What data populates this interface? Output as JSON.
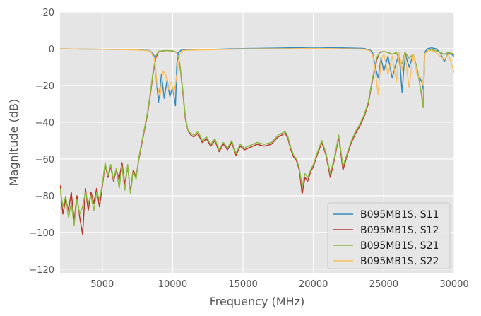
{
  "chart_data": {
    "type": "line",
    "xlabel": "Frequency (MHz)",
    "ylabel": "Magnitude (dB)",
    "xlim": [
      2000,
      30000
    ],
    "ylim": [
      -122,
      20
    ],
    "xticks": [
      5000,
      10000,
      15000,
      20000,
      25000,
      30000
    ],
    "xtick_labels": [
      "5000",
      "10000",
      "15000",
      "20000",
      "25000",
      "30000"
    ],
    "yticks": [
      -120,
      -100,
      -80,
      -60,
      -40,
      -20,
      0,
      20
    ],
    "ytick_labels": [
      "−120",
      "−100",
      "−80",
      "−60",
      "−40",
      "−20",
      "0",
      "20"
    ],
    "grid": true,
    "legend_position": "bottom-right",
    "background": "#e5e5e5",
    "series": [
      {
        "name": "B095MB1S, S11",
        "color": "#348abd",
        "x": [
          2000,
          4000,
          6000,
          7500,
          8400,
          8700,
          8900,
          9000,
          9200,
          9400,
          9600,
          9800,
          10000,
          10200,
          10300,
          10400,
          10600,
          11000,
          13000,
          15000,
          18000,
          20000,
          21000,
          22000,
          23500,
          24000,
          24200,
          24400,
          24600,
          24800,
          25000,
          25300,
          25600,
          25900,
          26100,
          26300,
          26500,
          26800,
          27100,
          27400,
          27700,
          27800,
          27900,
          28100,
          28400,
          28700,
          29000,
          29300,
          29600,
          30000
        ],
        "y": [
          0,
          -0.2,
          -0.4,
          -0.6,
          -1,
          -4,
          -22,
          -29,
          -14,
          -27,
          -17,
          -26,
          -21,
          -31,
          -8,
          -2,
          -0.8,
          -0.6,
          -0.3,
          0.1,
          0.4,
          0.8,
          0.7,
          0.5,
          0.2,
          -0.5,
          -2,
          -10,
          -16,
          -5,
          -12,
          -4,
          -16,
          -7,
          -3,
          -24,
          -2,
          -10,
          -3,
          -14,
          -18,
          -22,
          -2,
          0,
          0.5,
          0,
          -2,
          -7,
          -2,
          -4
        ]
      },
      {
        "name": "B095MB1S, S12",
        "color": "#b5382b",
        "x": [
          2000,
          2200,
          2400,
          2600,
          2800,
          3000,
          3200,
          3400,
          3600,
          3800,
          4000,
          4200,
          4400,
          4600,
          4800,
          5000,
          5200,
          5400,
          5600,
          5800,
          6000,
          6200,
          6400,
          6600,
          6800,
          7000,
          7200,
          7400,
          7600,
          7800,
          8000,
          8200,
          8400,
          8600,
          8800,
          9000,
          9500,
          10000,
          10300,
          10500,
          10700,
          10900,
          11100,
          11300,
          11500,
          11800,
          12100,
          12400,
          12700,
          13000,
          13300,
          13600,
          13900,
          14200,
          14500,
          14800,
          15100,
          15400,
          15700,
          16000,
          16500,
          17000,
          17500,
          18000,
          18200,
          18400,
          18600,
          18800,
          19000,
          19200,
          19400,
          19600,
          19800,
          20000,
          20300,
          20600,
          20900,
          21200,
          21500,
          21800,
          22100,
          22400,
          22700,
          23000,
          23300,
          23600,
          23900,
          24200,
          24500,
          24700,
          25000,
          25300,
          25600,
          25900,
          26100,
          26300,
          26500,
          26800,
          27100,
          27400,
          27700,
          27800,
          27900,
          28100,
          28400,
          28700,
          29000,
          29300,
          29600,
          30000
        ],
        "y": [
          -74,
          -90,
          -82,
          -88,
          -78,
          -94,
          -80,
          -92,
          -101,
          -76,
          -88,
          -78,
          -84,
          -76,
          -86,
          -75,
          -63,
          -70,
          -64,
          -72,
          -66,
          -71,
          -62,
          -74,
          -64,
          -78,
          -66,
          -70,
          -60,
          -52,
          -44,
          -36,
          -26,
          -14,
          -5,
          -1.5,
          -1,
          -1.2,
          -2,
          -8,
          -22,
          -38,
          -45,
          -47,
          -48,
          -46,
          -51,
          -49,
          -53,
          -50,
          -56,
          -52,
          -55,
          -51,
          -58,
          -53,
          -55,
          -54,
          -53,
          -52,
          -53,
          -52,
          -48,
          -46,
          -49,
          -55,
          -59,
          -61,
          -66,
          -79,
          -70,
          -72,
          -67,
          -64,
          -57,
          -51,
          -58,
          -70,
          -60,
          -48,
          -66,
          -58,
          -51,
          -46,
          -42,
          -37,
          -30,
          -17,
          -6,
          -2,
          -1.5,
          -2,
          -3,
          -2,
          -6,
          -8,
          -2,
          -5,
          -3,
          -12,
          -26,
          -32,
          -3,
          -1,
          -0.6,
          -1,
          -2,
          -3,
          -2,
          -3
        ]
      },
      {
        "name": "B095MB1S, S21",
        "color": "#8eba42",
        "x": [
          2000,
          2200,
          2400,
          2600,
          2800,
          3000,
          3200,
          3400,
          3600,
          3800,
          4000,
          4200,
          4400,
          4600,
          4800,
          5000,
          5200,
          5400,
          5600,
          5800,
          6000,
          6200,
          6400,
          6600,
          6800,
          7000,
          7200,
          7400,
          7600,
          7800,
          8000,
          8200,
          8400,
          8600,
          8800,
          9000,
          9500,
          10000,
          10300,
          10500,
          10700,
          10900,
          11100,
          11300,
          11500,
          11800,
          12100,
          12400,
          12700,
          13000,
          13300,
          13600,
          13900,
          14200,
          14500,
          14800,
          15100,
          15400,
          15700,
          16000,
          16500,
          17000,
          17500,
          18000,
          18200,
          18400,
          18600,
          18800,
          19000,
          19200,
          19400,
          19600,
          19800,
          20000,
          20300,
          20600,
          20900,
          21200,
          21500,
          21800,
          22100,
          22400,
          22700,
          23000,
          23300,
          23600,
          23900,
          24200,
          24500,
          24700,
          25000,
          25300,
          25600,
          25900,
          26100,
          26300,
          26500,
          26800,
          27100,
          27400,
          27700,
          27800,
          27900,
          28100,
          28400,
          28700,
          29000,
          29300,
          29600,
          30000
        ],
        "y": [
          -76,
          -86,
          -80,
          -92,
          -84,
          -96,
          -82,
          -90,
          -86,
          -78,
          -84,
          -80,
          -88,
          -78,
          -82,
          -74,
          -62,
          -69,
          -63,
          -71,
          -65,
          -76,
          -64,
          -77,
          -63,
          -79,
          -67,
          -71,
          -59,
          -51,
          -43,
          -35,
          -25,
          -13,
          -4,
          -1.3,
          -1,
          -1.1,
          -2,
          -8,
          -21,
          -37,
          -45,
          -46,
          -47,
          -45,
          -50,
          -48,
          -52,
          -49,
          -55,
          -51,
          -54,
          -50,
          -57,
          -52,
          -54,
          -53,
          -52,
          -51,
          -52,
          -51,
          -47,
          -45,
          -48,
          -54,
          -58,
          -60,
          -65,
          -75,
          -68,
          -70,
          -66,
          -63,
          -56,
          -50,
          -57,
          -68,
          -59,
          -47,
          -64,
          -57,
          -50,
          -45,
          -41,
          -36,
          -29,
          -16,
          -5,
          -1.8,
          -1.5,
          -2,
          -3,
          -2,
          -6,
          -8,
          -2,
          -5,
          -3,
          -12,
          -26,
          -32,
          -3,
          -1,
          -0.6,
          -1,
          -2,
          -3,
          -2,
          -3
        ]
      },
      {
        "name": "B095MB1S, S22",
        "color": "#fbc15e",
        "x": [
          2000,
          4000,
          6000,
          7500,
          8400,
          8700,
          8900,
          9100,
          9300,
          9500,
          9700,
          9900,
          10100,
          10300,
          10500,
          10700,
          11000,
          13000,
          15000,
          18000,
          20000,
          22000,
          23500,
          24000,
          24200,
          24400,
          24600,
          24800,
          25000,
          25300,
          25600,
          25900,
          26100,
          26300,
          26500,
          26800,
          27100,
          27400,
          27700,
          27800,
          27900,
          28100,
          28400,
          28700,
          29000,
          29300,
          29600,
          30000
        ],
        "y": [
          0,
          -0.2,
          -0.4,
          -0.7,
          -1.2,
          -5,
          -20,
          -26,
          -12,
          -14,
          -22,
          -18,
          -24,
          -14,
          -3,
          -1,
          -0.8,
          -0.5,
          -0.1,
          0,
          0.1,
          0,
          -0.2,
          -1,
          -3,
          -12,
          -25,
          -6,
          -3,
          -14,
          -4,
          -18,
          -2,
          -12,
          -3,
          -21,
          -3,
          -15,
          -16,
          -20,
          -3,
          -1,
          -1,
          -2,
          -4,
          -6,
          -3,
          -13
        ]
      }
    ]
  }
}
